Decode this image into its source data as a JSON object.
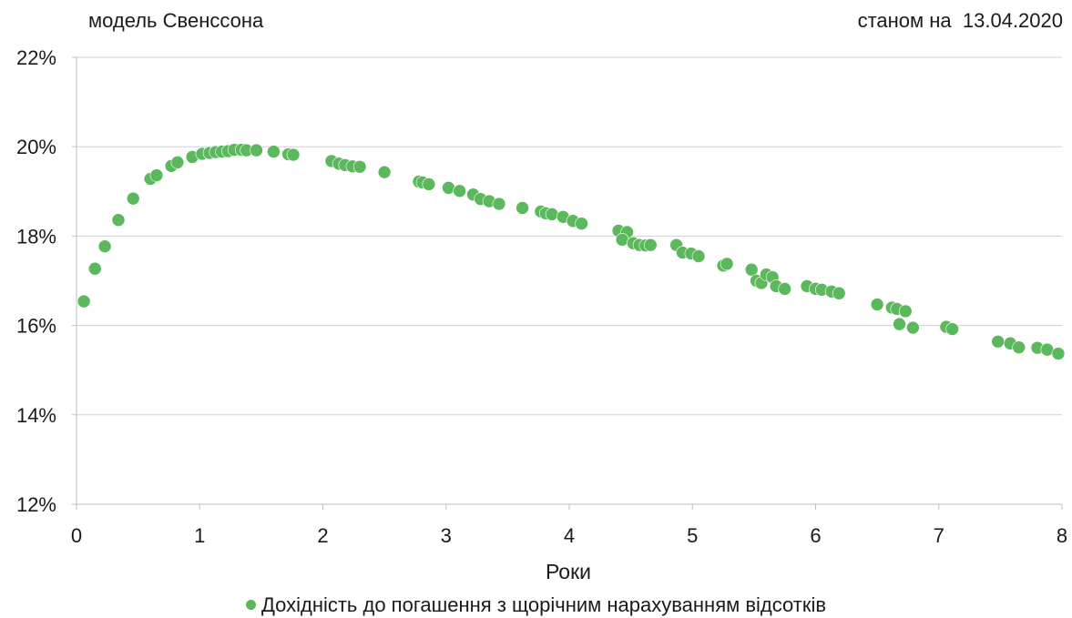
{
  "header": {
    "model_label": "модель Свенссона",
    "date_label": "станом на  13.04.2020"
  },
  "chart_data": {
    "type": "scatter",
    "title": "",
    "xlabel": "Роки",
    "ylabel": "",
    "xlim": [
      0,
      8
    ],
    "ylim": [
      12,
      22
    ],
    "x_ticks": [
      0,
      1,
      2,
      3,
      4,
      5,
      6,
      7,
      8
    ],
    "y_ticks": [
      12,
      14,
      16,
      18,
      20,
      22
    ],
    "y_tick_labels": [
      "12%",
      "14%",
      "16%",
      "18%",
      "20%",
      "22%"
    ],
    "grid": "horizontal",
    "legend_position": "bottom",
    "colors": {
      "series": "#5cb85c",
      "grid": "#d0d0d0",
      "axis": "#bfbfbf"
    },
    "series": [
      {
        "name": "Дохідність до погашення з щорічним нарахуванням відсотків",
        "points": [
          [
            0.06,
            16.54
          ],
          [
            0.15,
            17.27
          ],
          [
            0.23,
            17.77
          ],
          [
            0.34,
            18.36
          ],
          [
            0.46,
            18.84
          ],
          [
            0.6,
            19.28
          ],
          [
            0.65,
            19.36
          ],
          [
            0.77,
            19.57
          ],
          [
            0.82,
            19.65
          ],
          [
            0.94,
            19.77
          ],
          [
            1.02,
            19.84
          ],
          [
            1.08,
            19.86
          ],
          [
            1.13,
            19.88
          ],
          [
            1.18,
            19.89
          ],
          [
            1.23,
            19.9
          ],
          [
            1.28,
            19.93
          ],
          [
            1.34,
            19.93
          ],
          [
            1.38,
            19.92
          ],
          [
            1.46,
            19.92
          ],
          [
            1.6,
            19.89
          ],
          [
            1.72,
            19.83
          ],
          [
            1.76,
            19.82
          ],
          [
            2.07,
            19.68
          ],
          [
            2.13,
            19.62
          ],
          [
            2.18,
            19.59
          ],
          [
            2.24,
            19.56
          ],
          [
            2.3,
            19.55
          ],
          [
            2.5,
            19.43
          ],
          [
            2.78,
            19.22
          ],
          [
            2.81,
            19.2
          ],
          [
            2.86,
            19.16
          ],
          [
            3.02,
            19.08
          ],
          [
            3.11,
            19.01
          ],
          [
            3.22,
            18.93
          ],
          [
            3.28,
            18.83
          ],
          [
            3.35,
            18.78
          ],
          [
            3.43,
            18.72
          ],
          [
            3.62,
            18.63
          ],
          [
            3.77,
            18.55
          ],
          [
            3.81,
            18.51
          ],
          [
            3.86,
            18.49
          ],
          [
            3.95,
            18.43
          ],
          [
            4.03,
            18.34
          ],
          [
            4.1,
            18.28
          ],
          [
            4.4,
            18.12
          ],
          [
            4.47,
            18.09
          ],
          [
            4.43,
            17.92
          ],
          [
            4.52,
            17.84
          ],
          [
            4.57,
            17.8
          ],
          [
            4.62,
            17.79
          ],
          [
            4.66,
            17.8
          ],
          [
            4.87,
            17.8
          ],
          [
            4.92,
            17.63
          ],
          [
            4.99,
            17.61
          ],
          [
            5.05,
            17.55
          ],
          [
            5.25,
            17.34
          ],
          [
            5.28,
            17.38
          ],
          [
            5.48,
            17.25
          ],
          [
            5.52,
            17.0
          ],
          [
            5.56,
            16.95
          ],
          [
            5.6,
            17.14
          ],
          [
            5.65,
            17.08
          ],
          [
            5.68,
            16.88
          ],
          [
            5.75,
            16.82
          ],
          [
            5.93,
            16.88
          ],
          [
            6.0,
            16.82
          ],
          [
            6.05,
            16.8
          ],
          [
            6.13,
            16.76
          ],
          [
            6.19,
            16.72
          ],
          [
            6.5,
            16.47
          ],
          [
            6.62,
            16.4
          ],
          [
            6.66,
            16.37
          ],
          [
            6.73,
            16.32
          ],
          [
            6.68,
            16.03
          ],
          [
            6.79,
            15.95
          ],
          [
            7.06,
            15.97
          ],
          [
            7.11,
            15.92
          ],
          [
            7.48,
            15.64
          ],
          [
            7.58,
            15.6
          ],
          [
            7.65,
            15.51
          ],
          [
            7.8,
            15.5
          ],
          [
            7.88,
            15.46
          ],
          [
            7.97,
            15.37
          ]
        ]
      }
    ]
  }
}
